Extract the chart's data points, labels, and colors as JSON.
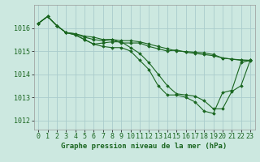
{
  "background_color": "#cce8e0",
  "grid_color": "#aacccc",
  "line_color": "#1a6620",
  "title": "Graphe pression niveau de la mer (hPa)",
  "title_fontsize": 6.5,
  "tick_fontsize": 6,
  "ylim": [
    1011.6,
    1017.0
  ],
  "xlim": [
    -0.5,
    23.5
  ],
  "yticks": [
    1012,
    1013,
    1014,
    1015,
    1016
  ],
  "xticks": [
    0,
    1,
    2,
    3,
    4,
    5,
    6,
    7,
    8,
    9,
    10,
    11,
    12,
    13,
    14,
    15,
    16,
    17,
    18,
    19,
    20,
    21,
    22,
    23
  ],
  "series": [
    [
      1016.2,
      1016.5,
      1016.1,
      1015.8,
      1015.75,
      1015.65,
      1015.6,
      1015.5,
      1015.5,
      1015.45,
      1015.45,
      1015.4,
      1015.3,
      1015.2,
      1015.1,
      1015.0,
      1014.98,
      1014.95,
      1014.92,
      1014.85,
      1014.7,
      1014.65,
      1014.6,
      1014.58
    ],
    [
      1016.2,
      1016.5,
      1016.1,
      1015.8,
      1015.75,
      1015.6,
      1015.5,
      1015.45,
      1015.5,
      1015.35,
      1015.35,
      1015.35,
      1015.2,
      1015.1,
      1015.0,
      1015.05,
      1014.95,
      1014.9,
      1014.85,
      1014.8,
      1014.7,
      1014.65,
      1014.62,
      1014.6
    ],
    [
      1016.2,
      1016.5,
      1016.1,
      1015.8,
      1015.7,
      1015.5,
      1015.3,
      1015.35,
      1015.4,
      1015.4,
      1015.15,
      1014.9,
      1014.5,
      1014.0,
      1013.5,
      1013.15,
      1013.1,
      1013.05,
      1012.85,
      1012.5,
      1012.5,
      1013.25,
      1013.5,
      1014.6
    ],
    [
      1016.2,
      1016.5,
      1016.1,
      1015.8,
      1015.7,
      1015.5,
      1015.3,
      1015.2,
      1015.15,
      1015.15,
      1015.0,
      1014.6,
      1014.2,
      1013.5,
      1013.1,
      1013.1,
      1013.0,
      1012.8,
      1012.4,
      1012.3,
      1013.2,
      1013.3,
      1014.5,
      1014.6
    ]
  ]
}
